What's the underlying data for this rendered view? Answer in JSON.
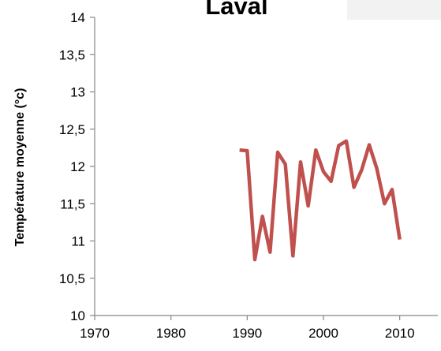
{
  "chart_data": {
    "type": "line",
    "title": "Laval",
    "y_label": "Température moyenne (°c)",
    "x": [
      1989,
      1990,
      1991,
      1992,
      1993,
      1994,
      1995,
      1996,
      1997,
      1998,
      1999,
      2000,
      2001,
      2002,
      2003,
      2004,
      2005,
      2006,
      2007,
      2008,
      2009,
      2010
    ],
    "series": [
      {
        "name": "Laval",
        "color": "#c0504d",
        "values": [
          12.22,
          12.21,
          10.75,
          11.33,
          10.85,
          12.19,
          12.03,
          10.8,
          12.06,
          11.47,
          12.22,
          11.93,
          11.8,
          12.28,
          12.34,
          11.72,
          11.95,
          12.29,
          11.97,
          11.5,
          11.69,
          11.02
        ]
      }
    ],
    "xlim": [
      1970,
      2015
    ],
    "xticks": [
      1970,
      1980,
      1990,
      2000,
      2010
    ],
    "ylim": [
      10,
      14
    ],
    "yticks": [
      10,
      {
        "value": 10.5,
        "label": "10,5"
      },
      11,
      {
        "value": 11.5,
        "label": "11,5"
      },
      12,
      {
        "value": 12.5,
        "label": "12,5"
      },
      13,
      {
        "value": 13.5,
        "label": "13,5"
      },
      14
    ],
    "grid": false,
    "legend": false
  }
}
